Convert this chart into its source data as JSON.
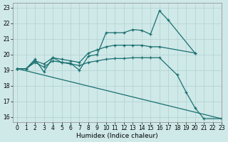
{
  "xlabel": "Humidex (Indice chaleur)",
  "xlim": [
    -0.5,
    23
  ],
  "ylim": [
    15.7,
    23.3
  ],
  "yticks": [
    16,
    17,
    18,
    19,
    20,
    21,
    22,
    23
  ],
  "xticks": [
    0,
    1,
    2,
    3,
    4,
    5,
    6,
    7,
    8,
    9,
    10,
    11,
    12,
    13,
    14,
    15,
    16,
    17,
    18,
    19,
    20,
    21,
    22,
    23
  ],
  "bg_color": "#cfe8e8",
  "grid_color": "#b0d0d0",
  "line_color": "#1a7070",
  "lines": [
    {
      "x": [
        0,
        1,
        2,
        3,
        4,
        5,
        6,
        7,
        8,
        9,
        10,
        11,
        12,
        13,
        14,
        15,
        16,
        17,
        20
      ],
      "y": [
        19.1,
        19.1,
        19.7,
        18.9,
        19.8,
        19.5,
        19.45,
        19.0,
        19.9,
        20.0,
        21.4,
        21.4,
        21.4,
        21.6,
        21.55,
        21.3,
        22.8,
        22.2,
        20.1
      ],
      "markers": true,
      "dashed": false
    },
    {
      "x": [
        0,
        1,
        2,
        3,
        4,
        5,
        6,
        7,
        8,
        9,
        10,
        11,
        12,
        13,
        14,
        15,
        16,
        20
      ],
      "y": [
        19.1,
        19.1,
        19.6,
        19.4,
        19.8,
        19.7,
        19.6,
        19.5,
        20.1,
        20.3,
        20.5,
        20.6,
        20.6,
        20.6,
        20.6,
        20.5,
        20.5,
        20.1
      ],
      "markers": true,
      "dashed": false
    },
    {
      "x": [
        0,
        1,
        2,
        3,
        4,
        5,
        6,
        7,
        8,
        9,
        10,
        11,
        12,
        13,
        14,
        15,
        16,
        18,
        19,
        20,
        21,
        23
      ],
      "y": [
        19.1,
        19.1,
        19.5,
        19.2,
        19.6,
        19.5,
        19.4,
        19.3,
        19.5,
        19.6,
        19.7,
        19.75,
        19.75,
        19.8,
        19.8,
        19.8,
        19.8,
        18.7,
        17.6,
        16.6,
        15.9,
        15.9
      ],
      "markers": true,
      "dashed": false
    },
    {
      "x": [
        0,
        23
      ],
      "y": [
        19.1,
        15.9
      ],
      "markers": false,
      "dashed": false
    }
  ]
}
